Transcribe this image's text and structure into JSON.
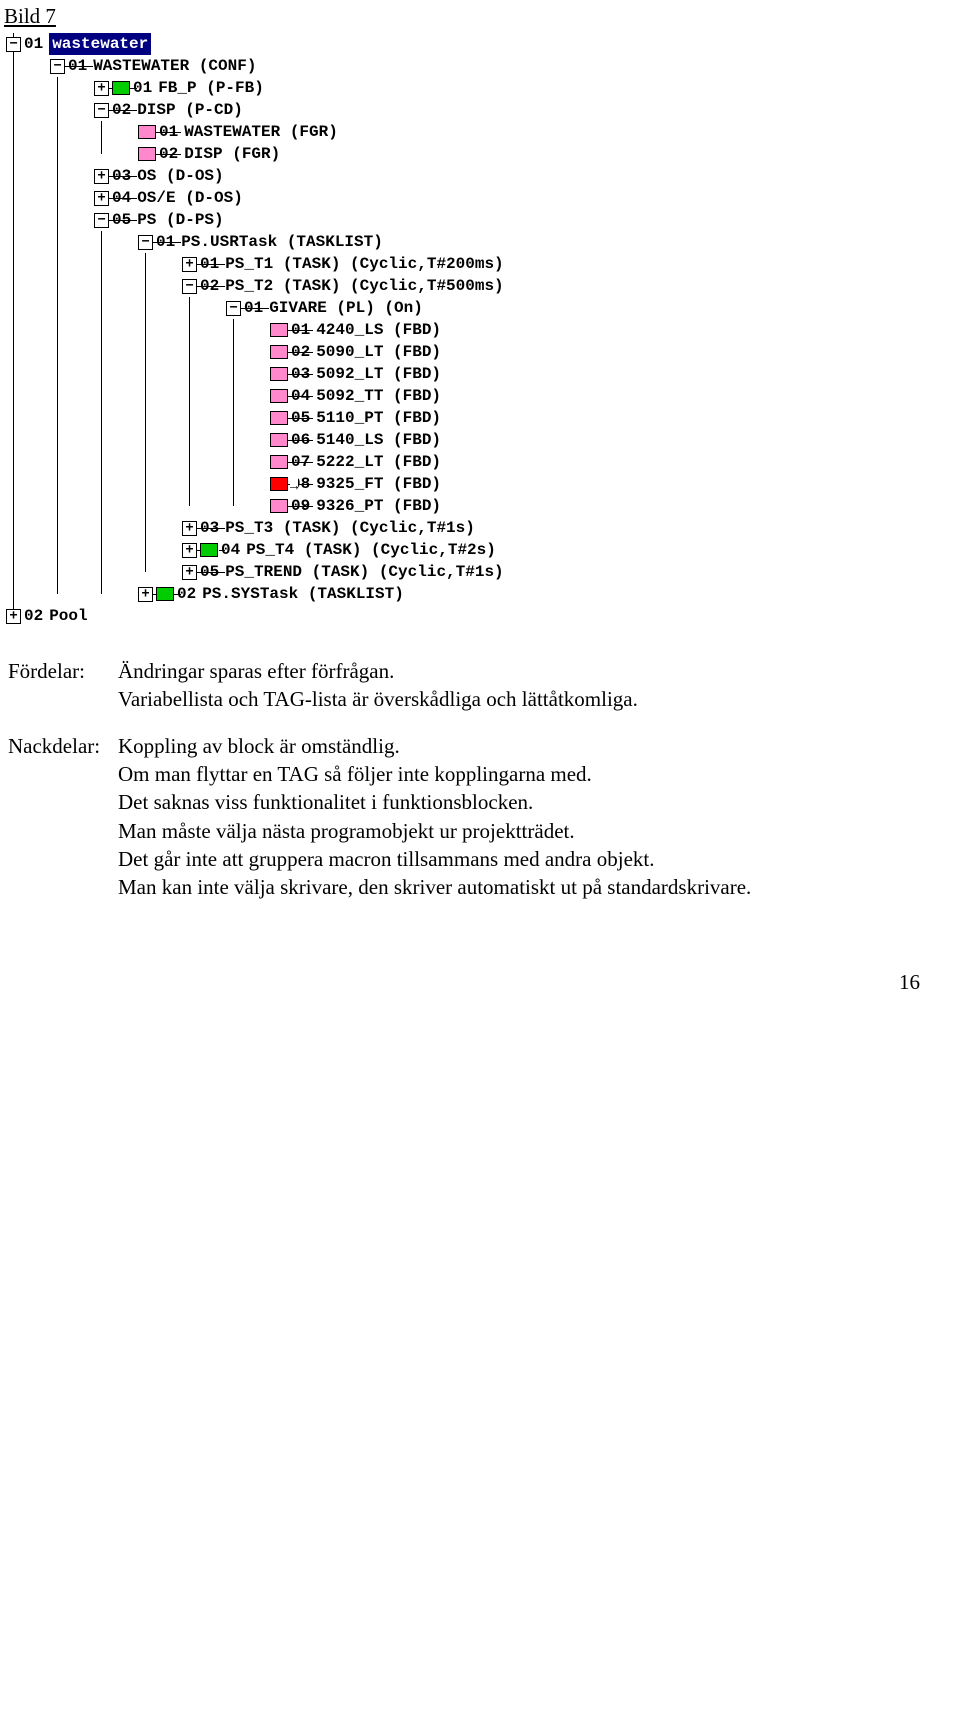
{
  "page_title": "Bild 7",
  "tree": {
    "root": [
      {
        "exp": "-",
        "num": "01",
        "label": "wastewater",
        "selected": true,
        "children": [
          {
            "exp": "-",
            "num": "01",
            "label": "WASTEWATER  (CONF)",
            "children": [
              {
                "exp": "+",
                "num": "01",
                "label": "FB_P  (P-FB)",
                "box": "green"
              },
              {
                "exp": "-",
                "num": "02",
                "label": "DISP  (P-CD)",
                "children": [
                  {
                    "num": "01",
                    "label": "WASTEWATER  (FGR)",
                    "box": "pink"
                  },
                  {
                    "num": "02",
                    "label": "DISP  (FGR)",
                    "box": "pink"
                  }
                ]
              },
              {
                "exp": "+",
                "num": "03",
                "label": "OS  (D-OS)"
              },
              {
                "exp": "+",
                "num": "04",
                "label": "OS/E  (D-OS)"
              },
              {
                "exp": "-",
                "num": "05",
                "label": "PS  (D-PS)",
                "children": [
                  {
                    "exp": "-",
                    "num": "01",
                    "label": "PS.USRTask  (TASKLIST)",
                    "children": [
                      {
                        "exp": "+",
                        "num": "01",
                        "label": "PS_T1  (TASK) (Cyclic,T#200ms)"
                      },
                      {
                        "exp": "-",
                        "num": "02",
                        "label": "PS_T2  (TASK) (Cyclic,T#500ms)",
                        "children": [
                          {
                            "exp": "-",
                            "num": "01",
                            "label": "GIVARE  (PL) (On)",
                            "children": [
                              {
                                "num": "01",
                                "label": "4240_LS  (FBD)",
                                "box": "pink"
                              },
                              {
                                "num": "02",
                                "label": "5090_LT  (FBD)",
                                "box": "pink"
                              },
                              {
                                "num": "03",
                                "label": "5092_LT  (FBD)",
                                "box": "pink"
                              },
                              {
                                "num": "04",
                                "label": "5092_TT  (FBD)",
                                "box": "pink"
                              },
                              {
                                "num": "05",
                                "label": "5110_PT  (FBD)",
                                "box": "pink"
                              },
                              {
                                "num": "06",
                                "label": "5140_LS  (FBD)",
                                "box": "pink"
                              },
                              {
                                "num": "07",
                                "label": "5222_LT  (FBD)",
                                "box": "pink"
                              },
                              {
                                "num": "08",
                                "label": "9325_FT  (FBD)",
                                "box": "red",
                                "marker": "→"
                              },
                              {
                                "num": "09",
                                "label": "9326_PT  (FBD)",
                                "box": "pink"
                              }
                            ]
                          }
                        ]
                      },
                      {
                        "exp": "+",
                        "num": "03",
                        "label": "PS_T3  (TASK) (Cyclic,T#1s)"
                      },
                      {
                        "exp": "+",
                        "num": "04",
                        "label": "PS_T4  (TASK) (Cyclic,T#2s)",
                        "box": "green",
                        "marker": "→!"
                      },
                      {
                        "exp": "+",
                        "num": "05",
                        "label": "PS_TREND  (TASK) (Cyclic,T#1s)"
                      }
                    ]
                  },
                  {
                    "exp": "+",
                    "num": "02",
                    "label": "PS.SYSTask  (TASKLIST)",
                    "box": "green",
                    "marker": "!"
                  }
                ]
              }
            ]
          }
        ]
      },
      {
        "exp": "+",
        "num": "02",
        "label": "Pool"
      }
    ]
  },
  "body": {
    "advantages_label": "Fördelar:",
    "advantages_text": "Ändringar sparas efter förfrågan.\nVariabellista och TAG-lista är överskådliga och lättåtkomliga.",
    "disadvantages_label": "Nackdelar:",
    "disadvantages_text": "Koppling av block är omständlig.\nOm man flyttar en TAG så följer inte kopplingarna med.\nDet saknas viss funktionalitet i funktionsblocken.\nMan måste välja nästa programobjekt ur projektträdet.\nDet går inte att gruppera macron tillsammans med andra objekt.\nMan kan inte välja skrivare, den skriver automatiskt ut på standardskrivare."
  },
  "page_number": "16"
}
